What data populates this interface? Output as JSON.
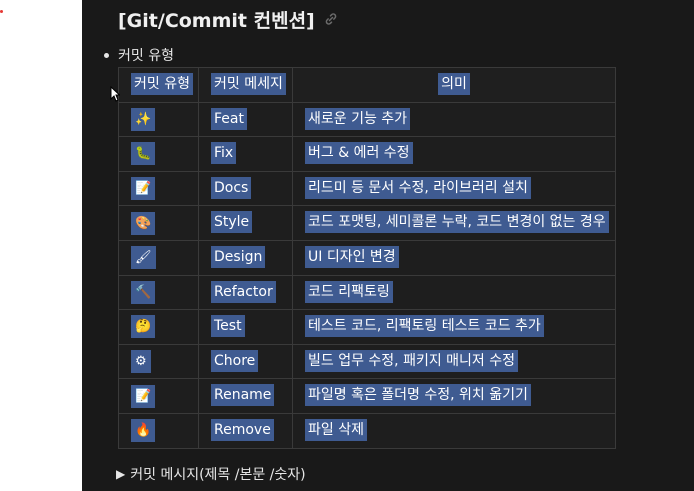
{
  "heading": {
    "title": "[Git/Commit 컨벤션]"
  },
  "list": {
    "bullet_label": "커밋 유형"
  },
  "table": {
    "headers": [
      "커밋 유형",
      "커밋 메세지",
      "의미"
    ],
    "rows": [
      {
        "emoji": "✨",
        "type": "Feat",
        "meaning": "새로운 기능 추가"
      },
      {
        "emoji": "🐛",
        "type": "Fix",
        "meaning": "버그 & 에러 수정"
      },
      {
        "emoji": "📝",
        "type": "Docs",
        "meaning": "리드미 등 문서 수정, 라이브러리 설치"
      },
      {
        "emoji": "🎨",
        "type": "Style",
        "meaning": "코드 포맷팅, 세미콜론 누락, 코드 변경이 없는 경우"
      },
      {
        "emoji": "🖌",
        "type": "Design",
        "meaning": "UI 디자인 변경"
      },
      {
        "emoji": "🔨",
        "type": "Refactor",
        "meaning": "코드 리팩토링"
      },
      {
        "emoji": "🤔",
        "type": "Test",
        "meaning": "테스트 코드, 리팩토링 테스트 코드 추가"
      },
      {
        "emoji": "⚙",
        "type": "Chore",
        "meaning": "빌드 업무 수정, 패키지 매니저 수정"
      },
      {
        "emoji": "📝",
        "type": "Rename",
        "meaning": "파일명 혹은 폴더명 수정, 위치 옮기기"
      },
      {
        "emoji": "🔥",
        "type": "Remove",
        "meaning": "파일 삭제"
      }
    ]
  },
  "toggle": {
    "label": "커밋 메시지(제목 /본문 /숫자)",
    "icon": "triangle-right-icon"
  },
  "colors": {
    "selection": "#3f5b91",
    "background": "#191919",
    "border": "#3a3a3a"
  }
}
